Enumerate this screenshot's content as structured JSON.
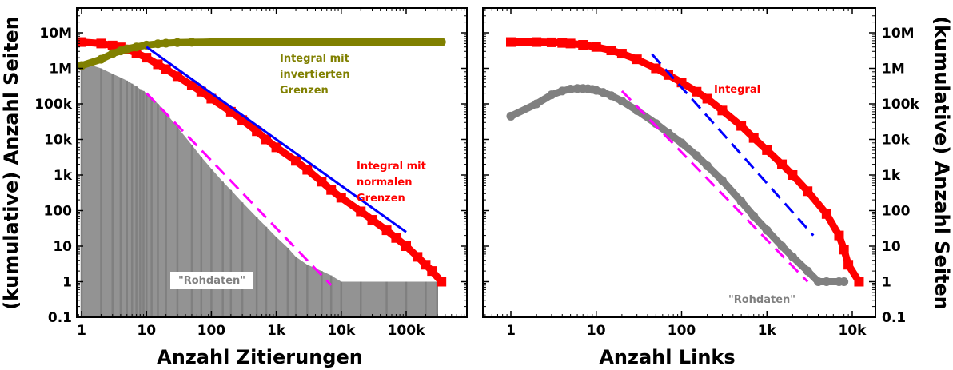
{
  "chart_data": [
    {
      "type": "scatter",
      "panel": "left",
      "xlabel": "Anzahl Zitierungen",
      "ylabel": "(kumulative) Anzahl Seiten",
      "xscale": "log",
      "yscale": "log",
      "xlim": [
        0.7,
        1000000
      ],
      "ylim": [
        0.1,
        30000000
      ],
      "xticks": [
        {
          "v": 1,
          "label": "1"
        },
        {
          "v": 10,
          "label": "10"
        },
        {
          "v": 100,
          "label": "100"
        },
        {
          "v": 1000,
          "label": "1k"
        },
        {
          "v": 10000,
          "label": "10k"
        },
        {
          "v": 100000,
          "label": "100k"
        }
      ],
      "yticks": [
        {
          "v": 0.1,
          "label": "0.1"
        },
        {
          "v": 1,
          "label": "1"
        },
        {
          "v": 10,
          "label": "10"
        },
        {
          "v": 100,
          "label": "100"
        },
        {
          "v": 1000,
          "label": "1k"
        },
        {
          "v": 10000,
          "label": "10k"
        },
        {
          "v": 100000,
          "label": "100k"
        },
        {
          "v": 1000000,
          "label": "1M"
        },
        {
          "v": 10000000,
          "label": "10M"
        }
      ],
      "grid": false,
      "series": [
        {
          "name": "Rohdaten",
          "kind": "histogram",
          "color": "#808080",
          "x": [
            1,
            2,
            3,
            4,
            5,
            6,
            7,
            8,
            9,
            10,
            12,
            15,
            20,
            30,
            50,
            70,
            100,
            150,
            200,
            300,
            500,
            700,
            1000,
            1500,
            2000,
            3000,
            5000,
            7000,
            10000,
            20000,
            50000,
            100000,
            200000,
            300000
          ],
          "y": [
            1500000,
            1000000,
            700000,
            550000,
            450000,
            370000,
            310000,
            260000,
            230000,
            200000,
            150000,
            100000,
            55000,
            22000,
            7000,
            3200,
            1500,
            650,
            380,
            170,
            65,
            35,
            18,
            9,
            5,
            3,
            2,
            1.5,
            1,
            1,
            1,
            1,
            1,
            1
          ]
        },
        {
          "name": "Integral mit normalen Grenzen",
          "kind": "squares",
          "color": "#ff0000",
          "x": [
            1,
            2,
            3,
            4,
            5,
            7,
            10,
            15,
            20,
            30,
            50,
            70,
            100,
            200,
            300,
            500,
            700,
            1000,
            2000,
            3000,
            5000,
            7000,
            10000,
            20000,
            30000,
            50000,
            70000,
            100000,
            150000,
            200000,
            250000,
            350000
          ],
          "y": [
            5500000,
            5000000,
            4400000,
            3900000,
            3400000,
            2700000,
            2000000,
            1300000,
            950000,
            600000,
            330000,
            220000,
            140000,
            60000,
            35000,
            17000,
            10000,
            6000,
            2500,
            1400,
            650,
            380,
            230,
            95,
            55,
            28,
            17,
            10,
            5,
            3,
            2,
            1
          ]
        },
        {
          "name": "Integral mit invertierten Grenzen",
          "kind": "circles",
          "color": "#808000",
          "x": [
            1,
            2,
            3,
            4,
            5,
            7,
            10,
            15,
            20,
            30,
            50,
            100,
            200,
            500,
            1000,
            2000,
            5000,
            10000,
            20000,
            50000,
            100000,
            200000,
            350000
          ],
          "y": [
            1200000,
            1800000,
            2600000,
            3100000,
            3500000,
            4000000,
            4500000,
            4900000,
            5100000,
            5300000,
            5400000,
            5500000,
            5500000,
            5500000,
            5500000,
            5500000,
            5500000,
            5500000,
            5500000,
            5500000,
            5500000,
            5500000,
            5500000
          ]
        }
      ],
      "fits": [
        {
          "color": "#0000ff",
          "dash": "solid",
          "x": [
            10,
            100000
          ],
          "y": [
            4000000,
            25
          ]
        },
        {
          "color": "#ff00ff",
          "dash": "dashed",
          "x": [
            10,
            7000
          ],
          "y": [
            200000,
            0.8
          ]
        }
      ],
      "annotations": [
        {
          "text_lines": [
            "Integral mit",
            "invertierten",
            "Grenzen"
          ],
          "color": "#808000"
        },
        {
          "text_lines": [
            "Integral mit",
            "normalen",
            "Grenzen"
          ],
          "color": "#ff0000"
        },
        {
          "text": "\"Rohdaten\"",
          "color": "#808080",
          "boxed": true
        }
      ]
    },
    {
      "type": "scatter",
      "panel": "right",
      "xlabel": "Anzahl Links",
      "ylabel": "(kumulative) Anzahl Seiten",
      "xscale": "log",
      "yscale": "log",
      "xlim": [
        0.5,
        30000
      ],
      "ylim": [
        0.1,
        30000000
      ],
      "xticks": [
        {
          "v": 1,
          "label": "1"
        },
        {
          "v": 10,
          "label": "10"
        },
        {
          "v": 100,
          "label": "100"
        },
        {
          "v": 1000,
          "label": "1k"
        },
        {
          "v": 10000,
          "label": "10k"
        }
      ],
      "yticks": [
        {
          "v": 0.1,
          "label": "0.1"
        },
        {
          "v": 1,
          "label": "1"
        },
        {
          "v": 10,
          "label": "10"
        },
        {
          "v": 100,
          "label": "100"
        },
        {
          "v": 1000,
          "label": "1k"
        },
        {
          "v": 10000,
          "label": "10k"
        },
        {
          "v": 100000,
          "label": "100k"
        },
        {
          "v": 1000000,
          "label": "1M"
        },
        {
          "v": 10000000,
          "label": "10M"
        }
      ],
      "grid": false,
      "series": [
        {
          "name": "Integral",
          "kind": "squares",
          "color": "#ff0000",
          "x": [
            1,
            2,
            3,
            4,
            5,
            7,
            10,
            15,
            20,
            30,
            50,
            70,
            100,
            150,
            200,
            300,
            500,
            700,
            1000,
            1500,
            2000,
            3000,
            5000,
            7000,
            8000,
            9000,
            12000
          ],
          "y": [
            5500000,
            5500000,
            5400000,
            5200000,
            5000000,
            4600000,
            4000000,
            3200000,
            2600000,
            1800000,
            1000000,
            650000,
            400000,
            220000,
            140000,
            65000,
            24000,
            11000,
            5000,
            2000,
            1000,
            350,
            80,
            20,
            8,
            3,
            1
          ]
        },
        {
          "name": "Rohdaten",
          "kind": "circles",
          "color": "#808080",
          "x": [
            1,
            2,
            3,
            4,
            5,
            6,
            7,
            8,
            9,
            10,
            12,
            15,
            20,
            30,
            50,
            70,
            100,
            150,
            200,
            300,
            500,
            700,
            1000,
            1500,
            2000,
            3000,
            4000,
            5000,
            7000,
            8000
          ],
          "y": [
            45000,
            100000,
            180000,
            230000,
            260000,
            270000,
            270000,
            265000,
            255000,
            240000,
            210000,
            170000,
            120000,
            65000,
            28000,
            15000,
            8000,
            3500,
            1800,
            700,
            180,
            70,
            28,
            10,
            5,
            2,
            1,
            1,
            1,
            1
          ]
        }
      ],
      "fits": [
        {
          "color": "#0000ff",
          "dash": "dashed",
          "x": [
            45,
            3500
          ],
          "y": [
            2500000,
            20
          ]
        },
        {
          "color": "#ff00ff",
          "dash": "dashed",
          "x": [
            20,
            3000
          ],
          "y": [
            230000,
            1
          ]
        }
      ],
      "annotations": [
        {
          "text": "Integral",
          "color": "#ff0000"
        },
        {
          "text": "\"Rohdaten\"",
          "color": "#808080"
        }
      ]
    }
  ]
}
